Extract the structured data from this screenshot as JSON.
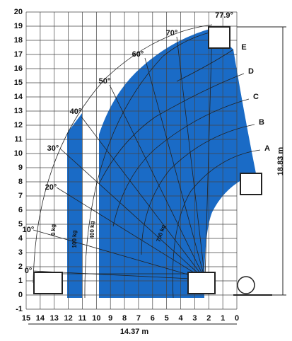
{
  "y_axis": {
    "labels": [
      "-1",
      "0",
      "1",
      "2",
      "3",
      "4",
      "5",
      "6",
      "7",
      "8",
      "9",
      "10",
      "11",
      "12",
      "13",
      "14",
      "15",
      "16",
      "17",
      "18",
      "19",
      "20"
    ]
  },
  "x_axis": {
    "labels": [
      "15",
      "14",
      "13",
      "12",
      "11",
      "10",
      "9",
      "8",
      "7",
      "6",
      "5",
      "4",
      "3",
      "2",
      "1",
      "0"
    ]
  },
  "angles": [
    "0°",
    "10°",
    "20°",
    "30°",
    "40°",
    "50°",
    "60°",
    "70°",
    "77.9°"
  ],
  "extensions": [
    "A",
    "B",
    "C",
    "D",
    "E"
  ],
  "loads": [
    "0 kg",
    "100 kg",
    "400 kg",
    "700 kg"
  ],
  "dimensions": {
    "width": "14.37 m",
    "height": "18.83 m"
  }
}
